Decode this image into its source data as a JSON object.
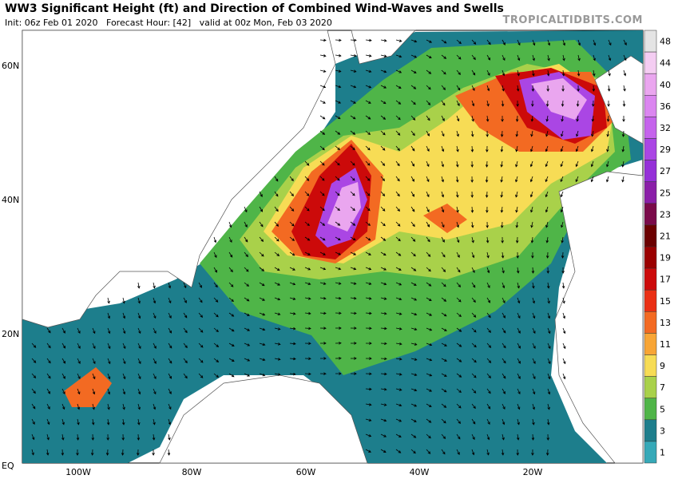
{
  "header": {
    "title": "WW3 Significant Height (ft) and Direction of Combined Wind-Waves and Swells",
    "init": "Init: 06z Feb 01 2020   Forecast Hour: [42]   valid at 00z Mon, Feb 03 2020",
    "credit": "TROPICALTIDBITS.COM"
  },
  "axes": {
    "lat": [
      "60N",
      "40N",
      "20N",
      "EQ"
    ],
    "lon": [
      "100W",
      "80W",
      "60W",
      "40W",
      "20W"
    ]
  },
  "colorbar": {
    "labels": [
      48,
      44,
      40,
      36,
      32,
      29,
      27,
      25,
      23,
      21,
      19,
      17,
      15,
      13,
      11,
      9,
      7,
      5,
      3,
      1
    ],
    "colors": [
      "#e4e4e4",
      "#f4cdf2",
      "#eaa6ef",
      "#db86f0",
      "#c564ec",
      "#aa46e4",
      "#9530d8",
      "#8a1fa8",
      "#7a0a4a",
      "#6b0000",
      "#9a0000",
      "#cc0a0a",
      "#ea2f14",
      "#f36a22",
      "#f8a535",
      "#f7dc55",
      "#a9d14a",
      "#4fb548",
      "#1d7e8c",
      "#36a9b8"
    ]
  }
}
